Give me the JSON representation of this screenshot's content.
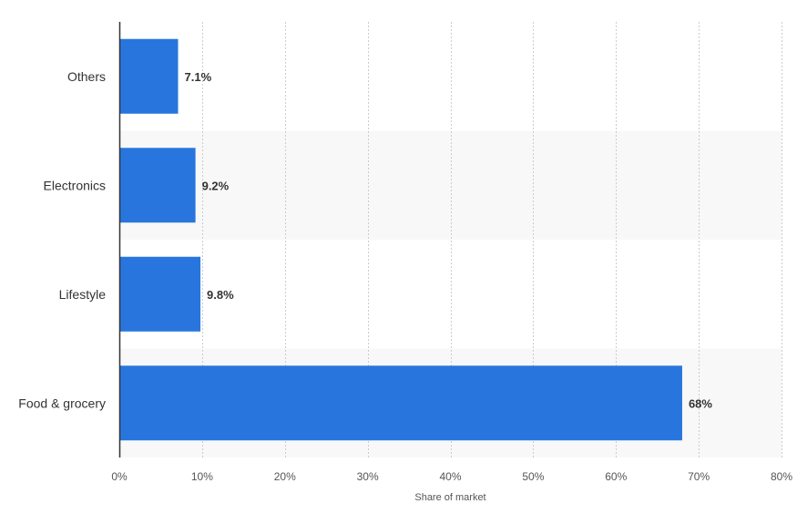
{
  "chart_data": {
    "type": "bar",
    "orientation": "horizontal",
    "categories": [
      "Others",
      "Electronics",
      "Lifestyle",
      "Food & grocery"
    ],
    "values": [
      7.1,
      9.2,
      9.8,
      68
    ],
    "value_labels": [
      "7.1%",
      "9.2%",
      "9.8%",
      "68%"
    ],
    "xlabel": "Share of market",
    "ylabel": "",
    "xlim": [
      0,
      80
    ],
    "ticks": [
      0,
      10,
      20,
      30,
      40,
      50,
      60,
      70,
      80
    ],
    "tick_labels": [
      "0%",
      "10%",
      "20%",
      "30%",
      "40%",
      "50%",
      "60%",
      "70%",
      "80%"
    ],
    "grid": true,
    "alternating_row_bands": true,
    "colors": {
      "bar": "#2876DD",
      "band": "#F8F8F8",
      "grid": "#CCCCCC",
      "axis": "#333333"
    }
  }
}
